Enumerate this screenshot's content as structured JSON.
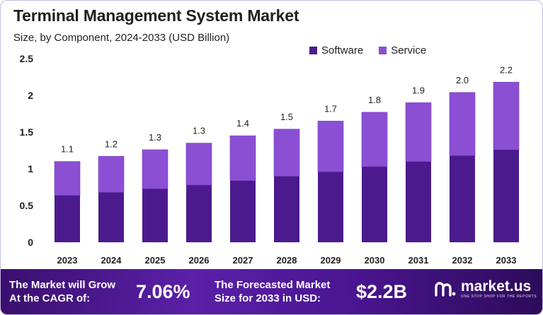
{
  "title": "Terminal Management System Market",
  "subtitle": "Size, by Component, 2024-2033 (USD Billion)",
  "colors": {
    "software": "#4b1a8c",
    "service": "#8b4fd3",
    "border": "#c9b8e6"
  },
  "chart_data": {
    "type": "bar",
    "stacked": true,
    "categories": [
      "2023",
      "2024",
      "2025",
      "2026",
      "2027",
      "2028",
      "2029",
      "2030",
      "2031",
      "2032",
      "2033"
    ],
    "series": [
      {
        "name": "Software",
        "values": [
          0.64,
          0.68,
          0.73,
          0.78,
          0.84,
          0.9,
          0.96,
          1.03,
          1.1,
          1.18,
          1.26
        ]
      },
      {
        "name": "Service",
        "values": [
          0.46,
          0.49,
          0.53,
          0.57,
          0.61,
          0.64,
          0.69,
          0.74,
          0.8,
          0.86,
          0.92
        ]
      }
    ],
    "totals": [
      "1.1",
      "1.2",
      "1.3",
      "1.3",
      "1.4",
      "1.5",
      "1.7",
      "1.8",
      "1.9",
      "2.0",
      "2.2"
    ],
    "ylim": [
      0,
      2.5
    ],
    "yticks": [
      "0",
      "0.5",
      "1",
      "1.5",
      "2",
      "2.5"
    ],
    "grid": false,
    "legend": "top-right"
  },
  "footer": {
    "cagr_label_line1": "The Market will Grow",
    "cagr_label_line2": "At the CAGR of:",
    "cagr_value": "7.06%",
    "forecast_label_line1": "The Forecasted Market",
    "forecast_label_line2": "Size for 2033 in USD:",
    "forecast_value": "$2.2B",
    "brand": "market.us",
    "tagline": "ONE STOP SHOP FOR THE REPORTS"
  }
}
